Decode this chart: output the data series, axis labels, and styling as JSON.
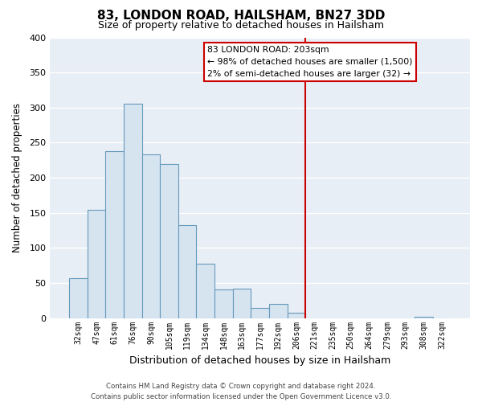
{
  "title": "83, LONDON ROAD, HAILSHAM, BN27 3DD",
  "subtitle": "Size of property relative to detached houses in Hailsham",
  "xlabel": "Distribution of detached houses by size in Hailsham",
  "ylabel": "Number of detached properties",
  "bar_color": "#d6e4f0",
  "bar_edge_color": "#6699bb",
  "categories": [
    "32sqm",
    "47sqm",
    "61sqm",
    "76sqm",
    "90sqm",
    "105sqm",
    "119sqm",
    "134sqm",
    "148sqm",
    "163sqm",
    "177sqm",
    "192sqm",
    "206sqm",
    "221sqm",
    "235sqm",
    "250sqm",
    "264sqm",
    "279sqm",
    "293sqm",
    "308sqm",
    "322sqm"
  ],
  "values": [
    57,
    154,
    238,
    305,
    233,
    220,
    133,
    78,
    41,
    42,
    15,
    20,
    8,
    0,
    0,
    0,
    0,
    0,
    0,
    2,
    0
  ],
  "ylim": [
    0,
    400
  ],
  "yticks": [
    0,
    50,
    100,
    150,
    200,
    250,
    300,
    350,
    400
  ],
  "vline_idx": 12.5,
  "vline_color": "#cc0000",
  "annotation_title": "83 LONDON ROAD: 203sqm",
  "annotation_line1": "← 98% of detached houses are smaller (1,500)",
  "annotation_line2": "2% of semi-detached houses are larger (32) →",
  "footer_line1": "Contains HM Land Registry data © Crown copyright and database right 2024.",
  "footer_line2": "Contains public sector information licensed under the Open Government Licence v3.0.",
  "background_color": "#e8eef5"
}
